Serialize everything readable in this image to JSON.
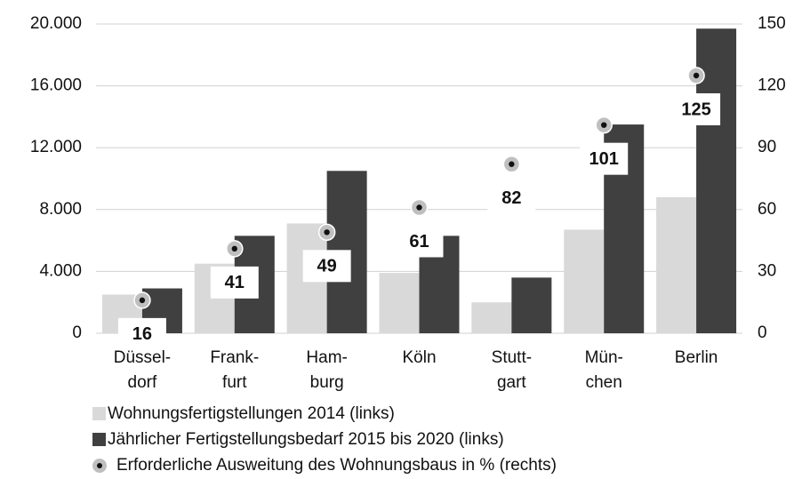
{
  "chart_data": {
    "type": "bar",
    "categories": [
      "Düssel-\ndorf",
      "Frank-\nfurt",
      "Ham-\nburg",
      "Köln",
      "Stutt-\ngart",
      "Mün-\nchen",
      "Berlin"
    ],
    "series": [
      {
        "name": "Wohnungsfertigstellungen 2014 (links)",
        "color": "#d9d9d9",
        "values": [
          2500,
          4500,
          7100,
          3900,
          2000,
          6700,
          8800
        ]
      },
      {
        "name": "Jährlicher Fertigstellungsbedarf 2015 bis 2020 (links)",
        "color": "#404040",
        "values": [
          2900,
          6300,
          10500,
          6300,
          3600,
          13500,
          19700
        ]
      },
      {
        "name": "Erforderliche Ausweitung des Wohnungsbaus in % (rechts)",
        "color": "#bfbfbf",
        "type": "scatter",
        "axis": "y2",
        "values": [
          16,
          41,
          49,
          61,
          82,
          101,
          125
        ]
      }
    ],
    "ylim": [
      0,
      20000
    ],
    "yticks": [
      0,
      {
        "value": 4000,
        "label": "4.000"
      },
      {
        "value": 8000,
        "label": "8.000"
      },
      {
        "value": 12000,
        "label": "12.000"
      },
      {
        "value": 16000,
        "label": "16.000"
      },
      {
        "value": 20000,
        "label": "20.000"
      }
    ],
    "y2lim": [
      0,
      150
    ],
    "y2ticks": [
      0,
      30,
      60,
      90,
      120,
      150
    ],
    "grid": true,
    "legend": "bottom"
  }
}
